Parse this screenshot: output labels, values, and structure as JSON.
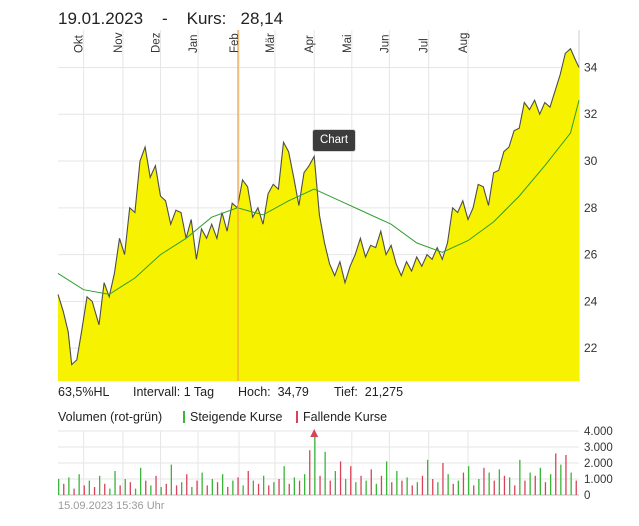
{
  "header": {
    "date": "19.01.2023",
    "separator": "-",
    "price_label": "Kurs:",
    "price_value": "28,14"
  },
  "info_bar": {
    "hl": "63,5%HL",
    "interval": "Intervall: 1 Tag",
    "high": "Hoch:  34,79",
    "low": "Tief:  21,275"
  },
  "volume_legend": {
    "title": "Volumen (rot-grün)",
    "rising": "Steigende Kurse",
    "falling": "Fallende Kurse"
  },
  "timestamp": "15.09.2023 15:36 Uhr",
  "tooltip": "Chart",
  "colors": {
    "area_fill": "#f7f300",
    "price_line": "#4d4d4d",
    "ma_line": "#2f9e2f",
    "crosshair": "#f2a23c",
    "volume_up": "#3ab53a",
    "volume_down": "#d9435a"
  },
  "chart_data": {
    "type": "area",
    "x_tick_labels": [
      "Okt",
      "Nov",
      "Dez",
      "Jan",
      "Feb",
      "Mär",
      "Apr",
      "Mai",
      "Jun",
      "Jul",
      "Aug"
    ],
    "y_ticks": [
      22,
      24,
      26,
      28,
      30,
      32,
      34
    ],
    "y_tick_labels": [
      "22",
      "24",
      "26",
      "28",
      "30",
      "32",
      "34"
    ],
    "ylim": [
      20.6,
      35.6
    ],
    "price": [
      [
        0,
        24.3
      ],
      [
        3,
        23.6
      ],
      [
        6,
        22.7
      ],
      [
        8,
        21.3
      ],
      [
        11,
        21.5
      ],
      [
        14,
        22.8
      ],
      [
        17,
        24.2
      ],
      [
        20,
        24.0
      ],
      [
        24,
        23.0
      ],
      [
        27,
        24.8
      ],
      [
        30,
        24.2
      ],
      [
        33,
        25.2
      ],
      [
        36,
        26.7
      ],
      [
        39,
        26.0
      ],
      [
        42,
        28.0
      ],
      [
        45,
        27.8
      ],
      [
        48,
        30.0
      ],
      [
        51,
        30.6
      ],
      [
        54,
        29.3
      ],
      [
        57,
        29.8
      ],
      [
        60,
        28.5
      ],
      [
        63,
        28.3
      ],
      [
        66,
        27.3
      ],
      [
        69,
        27.9
      ],
      [
        72,
        27.8
      ],
      [
        75,
        26.7
      ],
      [
        78,
        27.5
      ],
      [
        81,
        25.8
      ],
      [
        84,
        27.1
      ],
      [
        87,
        26.7
      ],
      [
        90,
        27.3
      ],
      [
        93,
        26.7
      ],
      [
        96,
        27.8
      ],
      [
        99,
        27.0
      ],
      [
        102,
        28.2
      ],
      [
        105,
        28.0
      ],
      [
        108,
        29.2
      ],
      [
        111,
        28.9
      ],
      [
        114,
        27.6
      ],
      [
        117,
        28.0
      ],
      [
        120,
        27.3
      ],
      [
        123,
        28.6
      ],
      [
        126,
        29.0
      ],
      [
        129,
        28.8
      ],
      [
        132,
        30.8
      ],
      [
        135,
        30.4
      ],
      [
        138,
        29.3
      ],
      [
        141,
        28.1
      ],
      [
        144,
        29.5
      ],
      [
        147,
        29.8
      ],
      [
        150,
        30.2
      ],
      [
        153,
        27.7
      ],
      [
        156,
        26.5
      ],
      [
        159,
        25.6
      ],
      [
        162,
        25.1
      ],
      [
        165,
        25.7
      ],
      [
        168,
        24.8
      ],
      [
        171,
        25.5
      ],
      [
        174,
        26.0
      ],
      [
        177,
        26.7
      ],
      [
        180,
        25.9
      ],
      [
        183,
        26.4
      ],
      [
        186,
        26.3
      ],
      [
        189,
        27.0
      ],
      [
        192,
        26.0
      ],
      [
        195,
        26.4
      ],
      [
        198,
        25.6
      ],
      [
        201,
        25.1
      ],
      [
        204,
        25.7
      ],
      [
        207,
        25.3
      ],
      [
        210,
        25.9
      ],
      [
        213,
        25.5
      ],
      [
        216,
        26.0
      ],
      [
        219,
        25.8
      ],
      [
        222,
        26.3
      ],
      [
        225,
        25.8
      ],
      [
        228,
        26.5
      ],
      [
        231,
        28.0
      ],
      [
        234,
        27.8
      ],
      [
        237,
        28.3
      ],
      [
        240,
        27.5
      ],
      [
        243,
        28.0
      ],
      [
        246,
        29.0
      ],
      [
        249,
        28.9
      ],
      [
        252,
        28.1
      ],
      [
        255,
        29.5
      ],
      [
        258,
        29.6
      ],
      [
        261,
        30.4
      ],
      [
        264,
        30.6
      ],
      [
        267,
        31.3
      ],
      [
        270,
        31.4
      ],
      [
        273,
        32.5
      ],
      [
        276,
        32.2
      ],
      [
        279,
        32.6
      ],
      [
        282,
        32.0
      ],
      [
        285,
        32.5
      ],
      [
        288,
        32.3
      ],
      [
        291,
        33.0
      ],
      [
        294,
        33.7
      ],
      [
        297,
        34.6
      ],
      [
        300,
        34.8
      ],
      [
        303,
        34.3
      ],
      [
        305,
        34.0
      ]
    ],
    "moving_average": [
      [
        0,
        25.2
      ],
      [
        15,
        24.5
      ],
      [
        30,
        24.3
      ],
      [
        45,
        25.0
      ],
      [
        60,
        26.0
      ],
      [
        75,
        26.7
      ],
      [
        90,
        27.6
      ],
      [
        105,
        28.0
      ],
      [
        120,
        27.7
      ],
      [
        135,
        28.3
      ],
      [
        150,
        28.8
      ],
      [
        165,
        28.3
      ],
      [
        180,
        27.8
      ],
      [
        195,
        27.3
      ],
      [
        210,
        26.5
      ],
      [
        225,
        26.1
      ],
      [
        240,
        26.6
      ],
      [
        255,
        27.4
      ],
      [
        270,
        28.5
      ],
      [
        285,
        29.8
      ],
      [
        300,
        31.2
      ],
      [
        305,
        32.6
      ]
    ],
    "volume": [
      [
        0,
        1000,
        "up"
      ],
      [
        3,
        700,
        "down"
      ],
      [
        6,
        1100,
        "up"
      ],
      [
        9,
        400,
        "down"
      ],
      [
        12,
        1300,
        "up"
      ],
      [
        15,
        600,
        "down"
      ],
      [
        18,
        900,
        "up"
      ],
      [
        21,
        500,
        "down"
      ],
      [
        24,
        1200,
        "up"
      ],
      [
        27,
        700,
        "down"
      ],
      [
        30,
        400,
        "up"
      ],
      [
        33,
        1500,
        "up"
      ],
      [
        36,
        600,
        "down"
      ],
      [
        39,
        1000,
        "up"
      ],
      [
        42,
        800,
        "down"
      ],
      [
        45,
        400,
        "up"
      ],
      [
        48,
        1700,
        "up"
      ],
      [
        51,
        900,
        "down"
      ],
      [
        54,
        600,
        "up"
      ],
      [
        57,
        1200,
        "down"
      ],
      [
        60,
        500,
        "up"
      ],
      [
        63,
        700,
        "down"
      ],
      [
        66,
        1900,
        "up"
      ],
      [
        69,
        600,
        "down"
      ],
      [
        72,
        800,
        "up"
      ],
      [
        75,
        1300,
        "down"
      ],
      [
        78,
        500,
        "up"
      ],
      [
        81,
        900,
        "down"
      ],
      [
        84,
        1400,
        "up"
      ],
      [
        87,
        600,
        "down"
      ],
      [
        90,
        1000,
        "up"
      ],
      [
        93,
        800,
        "down"
      ],
      [
        96,
        1300,
        "up"
      ],
      [
        99,
        500,
        "down"
      ],
      [
        102,
        900,
        "up"
      ],
      [
        105,
        1100,
        "down"
      ],
      [
        108,
        600,
        "up"
      ],
      [
        111,
        1500,
        "down"
      ],
      [
        114,
        900,
        "up"
      ],
      [
        117,
        700,
        "down"
      ],
      [
        120,
        1200,
        "up"
      ],
      [
        123,
        600,
        "down"
      ],
      [
        126,
        800,
        "up"
      ],
      [
        129,
        1000,
        "down"
      ],
      [
        132,
        1800,
        "up"
      ],
      [
        135,
        700,
        "down"
      ],
      [
        138,
        1100,
        "up"
      ],
      [
        141,
        900,
        "down"
      ],
      [
        144,
        1300,
        "up"
      ],
      [
        147,
        2800,
        "down"
      ],
      [
        150,
        3700,
        "up"
      ],
      [
        153,
        1200,
        "down"
      ],
      [
        156,
        2700,
        "up"
      ],
      [
        159,
        900,
        "down"
      ],
      [
        162,
        1500,
        "up"
      ],
      [
        165,
        2100,
        "down"
      ],
      [
        168,
        1000,
        "up"
      ],
      [
        171,
        1800,
        "down"
      ],
      [
        174,
        800,
        "up"
      ],
      [
        177,
        1200,
        "down"
      ],
      [
        180,
        900,
        "up"
      ],
      [
        183,
        1600,
        "down"
      ],
      [
        186,
        700,
        "up"
      ],
      [
        189,
        1200,
        "down"
      ],
      [
        192,
        2100,
        "up"
      ],
      [
        195,
        800,
        "down"
      ],
      [
        198,
        1500,
        "up"
      ],
      [
        201,
        900,
        "down"
      ],
      [
        204,
        1100,
        "up"
      ],
      [
        207,
        600,
        "down"
      ],
      [
        210,
        800,
        "up"
      ],
      [
        213,
        1200,
        "down"
      ],
      [
        216,
        2200,
        "up"
      ],
      [
        219,
        1000,
        "down"
      ],
      [
        222,
        800,
        "up"
      ],
      [
        225,
        2000,
        "down"
      ],
      [
        228,
        1300,
        "up"
      ],
      [
        231,
        700,
        "down"
      ],
      [
        234,
        900,
        "up"
      ],
      [
        237,
        1400,
        "down"
      ],
      [
        240,
        1800,
        "up"
      ],
      [
        243,
        600,
        "down"
      ],
      [
        246,
        1000,
        "up"
      ],
      [
        249,
        1700,
        "down"
      ],
      [
        252,
        1400,
        "up"
      ],
      [
        255,
        900,
        "down"
      ],
      [
        258,
        1600,
        "up"
      ],
      [
        261,
        1200,
        "down"
      ],
      [
        264,
        1100,
        "up"
      ],
      [
        267,
        600,
        "down"
      ],
      [
        270,
        2200,
        "up"
      ],
      [
        273,
        900,
        "down"
      ],
      [
        276,
        1400,
        "up"
      ],
      [
        279,
        1200,
        "down"
      ],
      [
        282,
        1700,
        "up"
      ],
      [
        285,
        800,
        "down"
      ],
      [
        288,
        1300,
        "up"
      ],
      [
        291,
        2600,
        "down"
      ],
      [
        294,
        1900,
        "up"
      ],
      [
        297,
        2500,
        "down"
      ],
      [
        300,
        1400,
        "up"
      ],
      [
        303,
        900,
        "down"
      ]
    ],
    "volume_ticks": [
      0,
      1000,
      2000,
      3000,
      4000
    ],
    "volume_tick_labels": [
      "0",
      "1.000",
      "2.000",
      "3.000",
      "4.000"
    ],
    "volume_ylim": [
      0,
      4000
    ],
    "marker_index": 150,
    "grid": true
  }
}
